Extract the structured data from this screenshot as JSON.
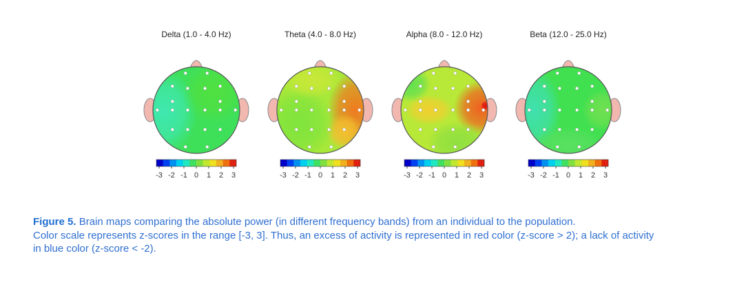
{
  "panels": [
    {
      "title": "Delta (1.0 - 4.0 Hz)"
    },
    {
      "title": "Theta (4.0 - 8.0 Hz)"
    },
    {
      "title": "Alpha (8.0 - 12.0 Hz)"
    },
    {
      "title": "Beta (12.0 - 25.0 Hz)"
    }
  ],
  "scale_ticks": [
    -3,
    -2,
    -1,
    0,
    1,
    2,
    3
  ],
  "caption": {
    "label": "Figure 5.",
    "lines": [
      "Brain maps comparing the absolute power (in different frequency bands) from an individual to the population.",
      "Color scale represents z-scores in the range [-3, 3]. Thus, an excess of activity is represented in red color (z-score > 2); a lack of activity",
      "in blue color (z-score < -2)."
    ]
  }
}
